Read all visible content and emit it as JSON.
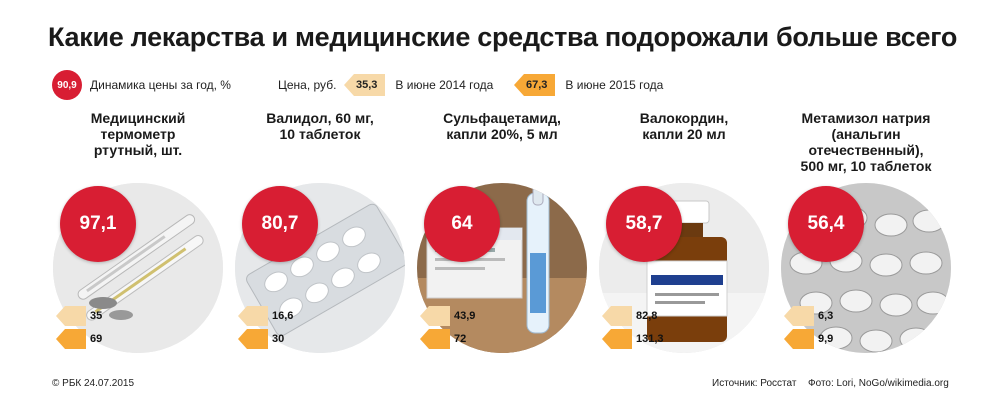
{
  "title": "Какие лекарства и медицинские средства подорожали больше всего",
  "legend": {
    "dynamic_value": "90,9",
    "dynamic_label": "Динамика цены за год, %",
    "price_label": "Цена, руб.",
    "tag_2014_value": "35,3",
    "tag_2014_label": "В июне 2014 года",
    "tag_2015_value": "67,3",
    "tag_2015_label": "В июне 2015 года"
  },
  "colors": {
    "badge": "#d81e33",
    "tag_2014": "#f7d9a8",
    "tag_2015": "#f7a836"
  },
  "chart_data": {
    "type": "table",
    "columns": [
      "Динамика цены за год, %",
      "В июне 2014 года",
      "В июне 2015 года"
    ],
    "items": [
      {
        "name": "Медицинский термометр ртутный, шт.",
        "name_lines": [
          "Медицинский",
          "термометр",
          "ртутный, шт."
        ],
        "change_label": "97,1",
        "change": 97.1,
        "price_2014_label": "35",
        "price_2014": 35,
        "price_2015_label": "69",
        "price_2015": 69,
        "photo_icon": "thermometer-icon"
      },
      {
        "name": "Валидол, 60 мг, 10 таблеток",
        "name_lines": [
          "Валидол, 60 мг,",
          "10 таблеток"
        ],
        "change_label": "80,7",
        "change": 80.7,
        "price_2014_label": "16,6",
        "price_2014": 16.6,
        "price_2015_label": "30",
        "price_2015": 30,
        "photo_icon": "tablets-blister-icon"
      },
      {
        "name": "Сульфацетамид, капли 20%, 5 мл",
        "name_lines": [
          "Сульфацетамид,",
          "капли 20%, 5 мл"
        ],
        "change_label": "64",
        "change": 64,
        "price_2014_label": "43,9",
        "price_2014": 43.9,
        "price_2015_label": "72",
        "price_2015": 72,
        "photo_icon": "ampoule-icon"
      },
      {
        "name": "Валокордин, капли 20 мл",
        "name_lines": [
          "Валокордин,",
          "капли 20 мл"
        ],
        "change_label": "58,7",
        "change": 58.7,
        "price_2014_label": "82,8",
        "price_2014": 82.8,
        "price_2015_label": "131,3",
        "price_2015": 131.3,
        "photo_icon": "bottle-icon"
      },
      {
        "name": "Метамизол натрия (анальгин отечественный), 500 мг, 10 таблеток",
        "name_lines": [
          "Метамизол натрия",
          "(анальгин",
          "отечественный),",
          "500 мг, 10 таблеток"
        ],
        "change_label": "56,4",
        "change": 56.4,
        "price_2014_label": "6,3",
        "price_2014": 6.3,
        "price_2015_label": "9,9",
        "price_2015": 9.9,
        "photo_icon": "tablets-pile-icon"
      }
    ]
  },
  "footer": {
    "copyright": "© РБК 24.07.2015",
    "source": "Источник: Росстат",
    "photo_credit": "Фото: Lori, NoGo/wikimedia.org"
  }
}
